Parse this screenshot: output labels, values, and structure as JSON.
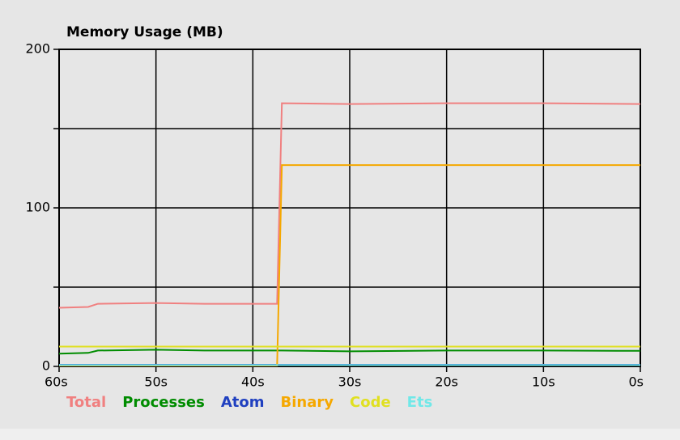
{
  "chart_data": {
    "type": "line",
    "title": "Memory Usage (MB)",
    "x": [
      60,
      57,
      56,
      50,
      45,
      40,
      37.5,
      37,
      30,
      20,
      10,
      0
    ],
    "xlim": [
      60,
      0
    ],
    "xticks": [
      {
        "value": 60,
        "label": "60s"
      },
      {
        "value": 50,
        "label": "50s"
      },
      {
        "value": 40,
        "label": "40s"
      },
      {
        "value": 30,
        "label": "30s"
      },
      {
        "value": 20,
        "label": "20s"
      },
      {
        "value": 10,
        "label": "10s"
      },
      {
        "value": 0,
        "label": "0s"
      }
    ],
    "ylim": [
      0,
      200
    ],
    "yticks": [
      0,
      100,
      200
    ],
    "minor_yticks": [
      50,
      150
    ],
    "grid": true,
    "series": [
      {
        "name": "Total",
        "color": "#f08080",
        "values": [
          37,
          37.5,
          39.5,
          40,
          39.5,
          39.5,
          39.5,
          166,
          165.5,
          166,
          166,
          165.5
        ]
      },
      {
        "name": "Processes",
        "color": "#008c00",
        "values": [
          8,
          8.5,
          10,
          10.5,
          10,
          10,
          10,
          10,
          9.5,
          10,
          10,
          9.8
        ]
      },
      {
        "name": "Atom",
        "color": "#2040c0",
        "values": [
          1,
          1,
          1,
          1,
          1,
          1,
          1,
          1,
          1,
          1,
          1,
          1
        ]
      },
      {
        "name": "Binary",
        "color": "#f5a800",
        "values": [
          0.5,
          0.5,
          0.5,
          0.5,
          0.5,
          0.5,
          0.5,
          127,
          127,
          127,
          127,
          127
        ]
      },
      {
        "name": "Code",
        "color": "#e0e020",
        "values": [
          12.5,
          12.5,
          12.5,
          12.5,
          12.5,
          12.5,
          12.5,
          12.5,
          12.5,
          12.5,
          12.5,
          12.5
        ]
      },
      {
        "name": "Ets",
        "color": "#70e8e8",
        "values": [
          0.8,
          0.8,
          0.8,
          0.8,
          0.8,
          0.8,
          0.8,
          0.8,
          0.8,
          0.8,
          0.8,
          0.8
        ]
      }
    ]
  }
}
